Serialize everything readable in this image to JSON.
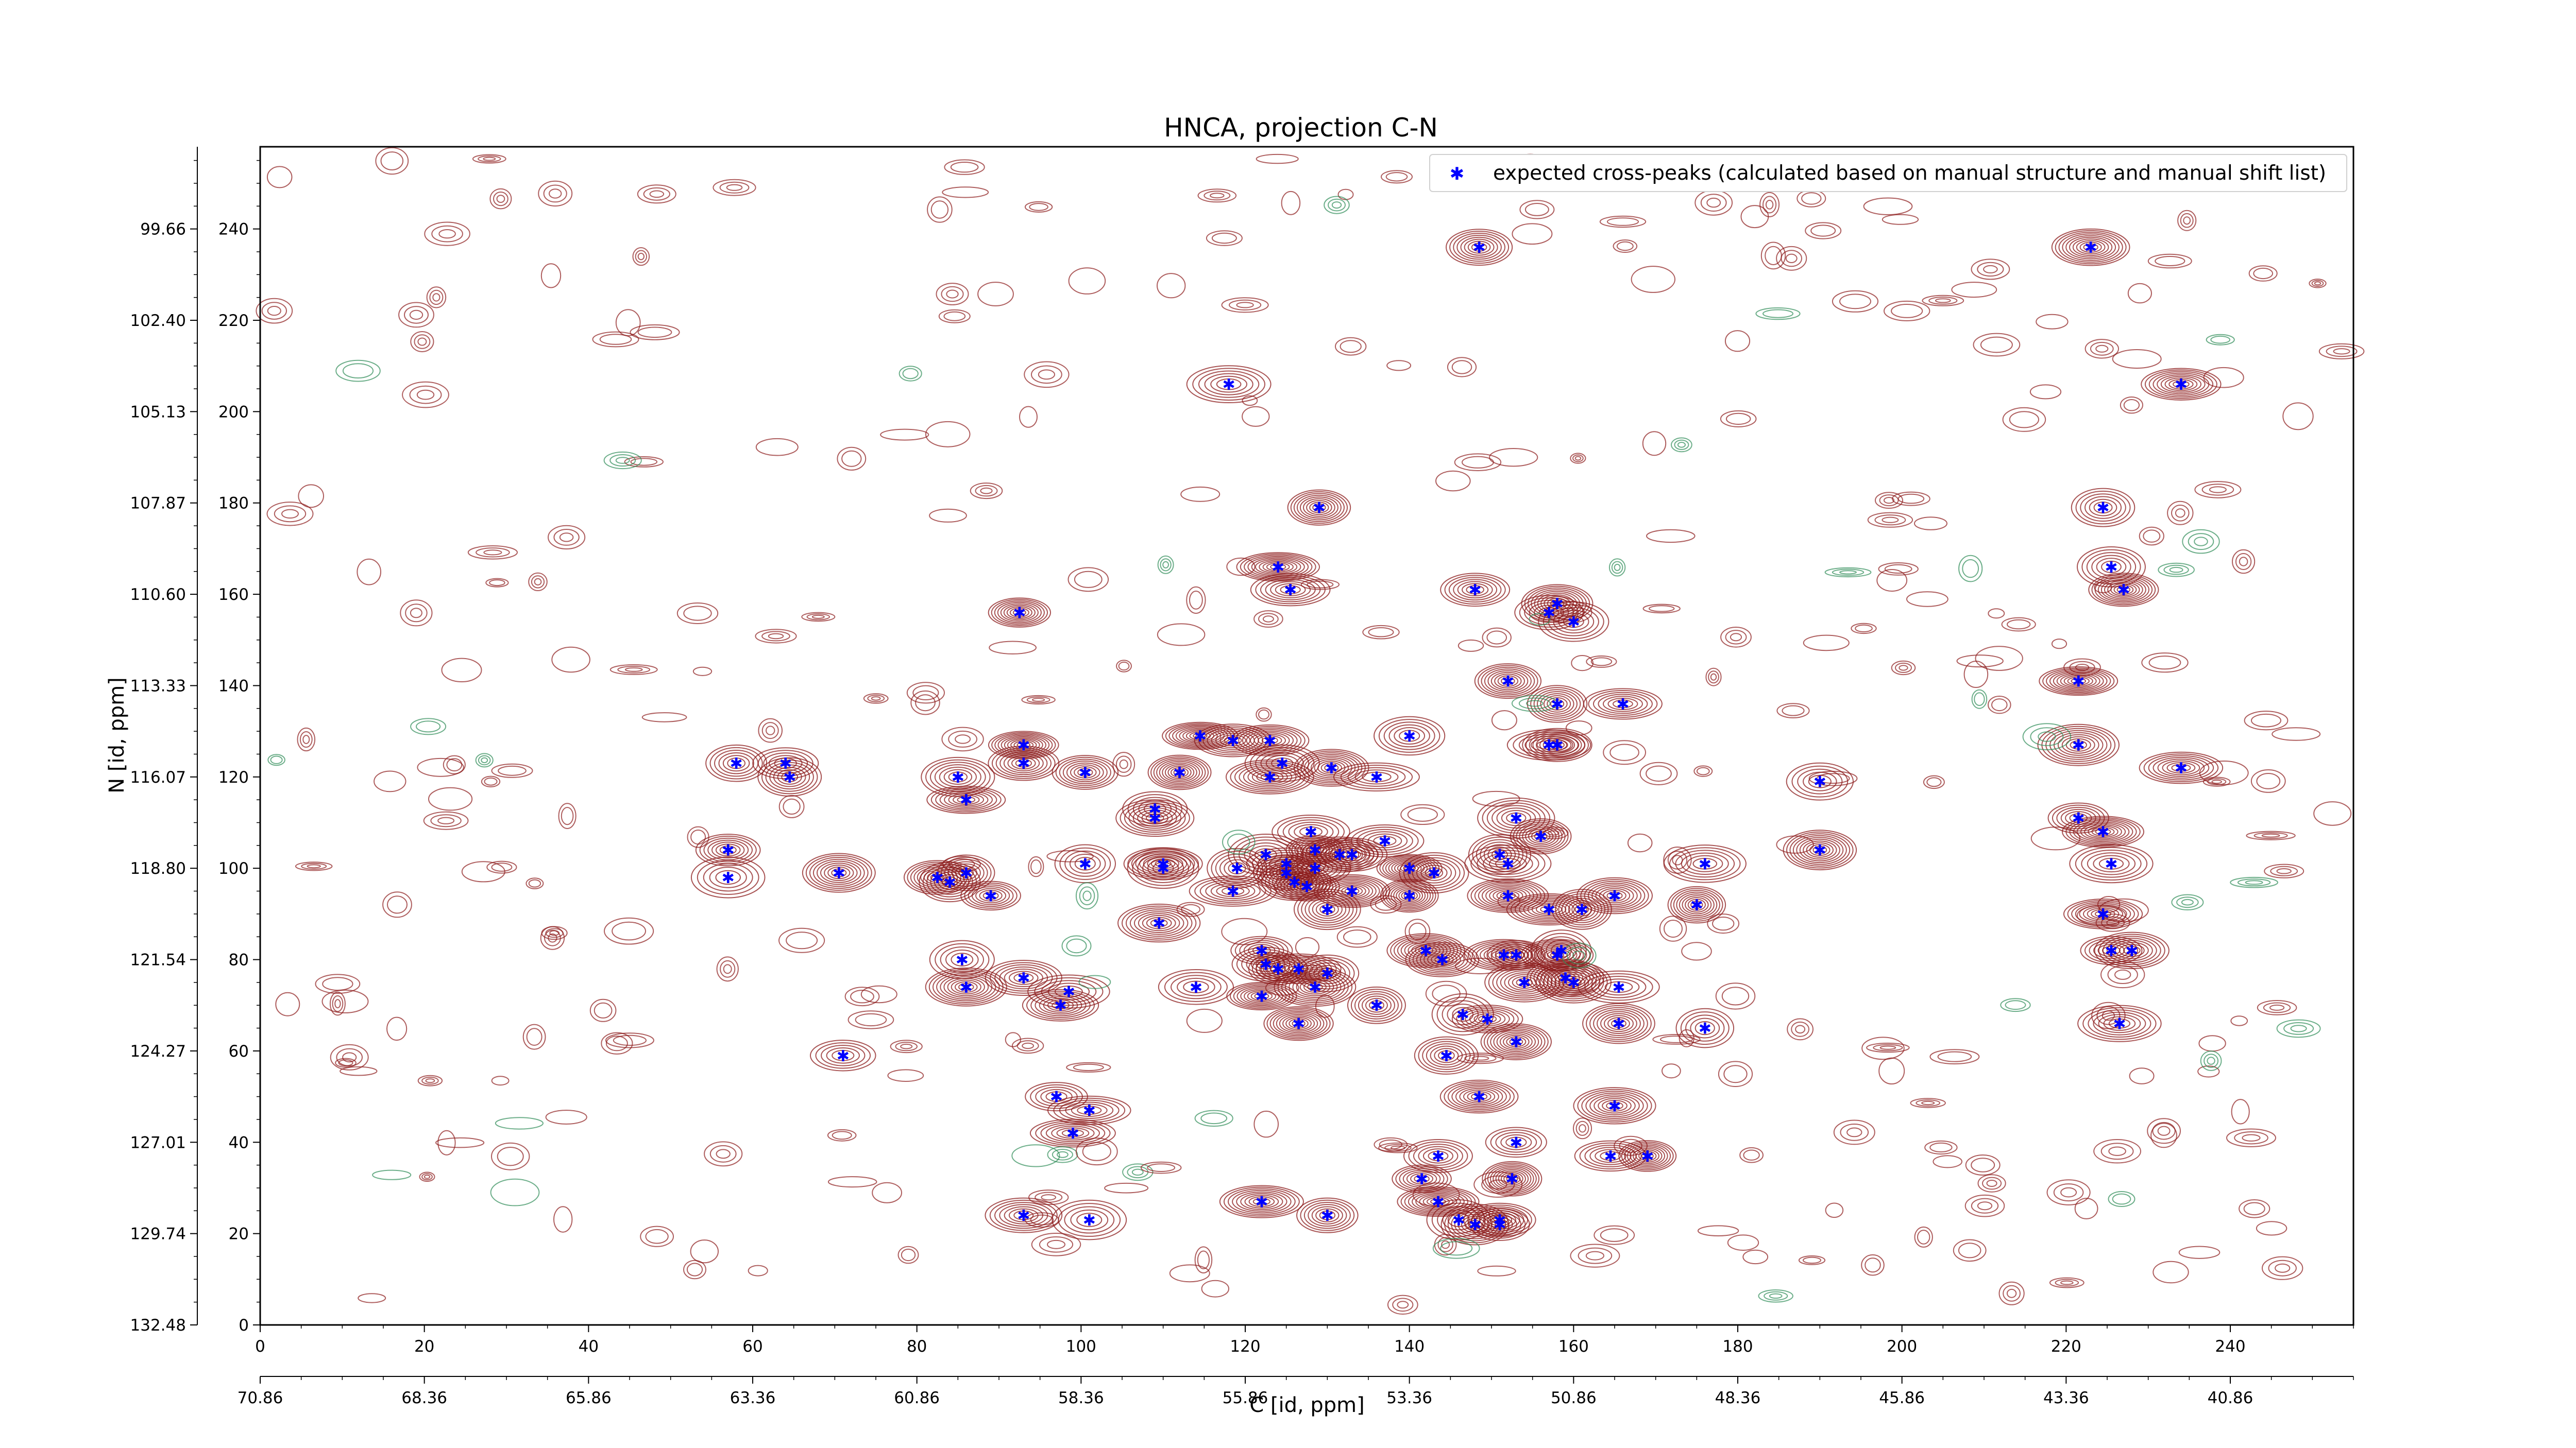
{
  "chart_data": {
    "type": "scatter",
    "title": "HNCA, projection C-N",
    "xlabel": "C [id, ppm]",
    "ylabel": "N [id, ppm]",
    "xlim": [
      0,
      255
    ],
    "ylim": [
      0,
      258
    ],
    "x_ticks": [
      0,
      20,
      40,
      60,
      80,
      100,
      120,
      140,
      160,
      180,
      200,
      220,
      240
    ],
    "y_ticks": [
      0,
      20,
      40,
      60,
      80,
      100,
      120,
      140,
      160,
      180,
      200,
      220,
      240
    ],
    "secondary_x_axis": {
      "position": "bottom",
      "tick_labels": [
        "70.86",
        "68.36",
        "65.86",
        "63.36",
        "60.86",
        "58.36",
        "55.86",
        "53.36",
        "50.86",
        "48.36",
        "45.86",
        "43.36",
        "40.86"
      ]
    },
    "secondary_y_axis": {
      "position": "left",
      "tick_labels": [
        "132.48",
        "129.74",
        "127.01",
        "124.27",
        "121.54",
        "118.80",
        "116.07",
        "113.33",
        "110.60",
        "107.87",
        "105.13",
        "102.40",
        "99.66"
      ]
    },
    "grid": false,
    "legend": {
      "placement": "top-right",
      "entries": [
        "expected cross-peaks (calculated based on manual structure and manual shift list)"
      ]
    },
    "colors": {
      "peaks": "#0000ff",
      "positive_contours": "#8b1a1a",
      "negative_contours": "#2e8b57"
    },
    "series": [
      {
        "name": "expected cross-peaks (calculated based on manual structure and manual shift list)",
        "points": [
          [
            148.5,
            236
          ],
          [
            223,
            236
          ],
          [
            118,
            206
          ],
          [
            234,
            206
          ],
          [
            129,
            179
          ],
          [
            224.5,
            179
          ],
          [
            124,
            166
          ],
          [
            125.5,
            161
          ],
          [
            225.5,
            166
          ],
          [
            227,
            161
          ],
          [
            92.5,
            156
          ],
          [
            157,
            156
          ],
          [
            158,
            158
          ],
          [
            160,
            154
          ],
          [
            152,
            141
          ],
          [
            221.5,
            141
          ],
          [
            158,
            136
          ],
          [
            166,
            136
          ],
          [
            148,
            161
          ],
          [
            93,
            127
          ],
          [
            58,
            123
          ],
          [
            64,
            123
          ],
          [
            64.5,
            120
          ],
          [
            85,
            120
          ],
          [
            86,
            115
          ],
          [
            93,
            123
          ],
          [
            100.5,
            121
          ],
          [
            112,
            121
          ],
          [
            114.5,
            129
          ],
          [
            118.5,
            128
          ],
          [
            123,
            128
          ],
          [
            123,
            120
          ],
          [
            124.5,
            123
          ],
          [
            130.5,
            122
          ],
          [
            136,
            120
          ],
          [
            140,
            129
          ],
          [
            157,
            127
          ],
          [
            158,
            127
          ],
          [
            190,
            119
          ],
          [
            221.5,
            127
          ],
          [
            234,
            122
          ],
          [
            109,
            113
          ],
          [
            109,
            111
          ],
          [
            153,
            111
          ],
          [
            156,
            107
          ],
          [
            128,
            108
          ],
          [
            137,
            106
          ],
          [
            57,
            104
          ],
          [
            57,
            98
          ],
          [
            70.5,
            99
          ],
          [
            82.5,
            98
          ],
          [
            84,
            97
          ],
          [
            86,
            99
          ],
          [
            89,
            94
          ],
          [
            100.5,
            101
          ],
          [
            110,
            101
          ],
          [
            110,
            100
          ],
          [
            119,
            100
          ],
          [
            118.5,
            95
          ],
          [
            122.5,
            103
          ],
          [
            125,
            101
          ],
          [
            125,
            99
          ],
          [
            126,
            97
          ],
          [
            127.5,
            96
          ],
          [
            128.5,
            104
          ],
          [
            128.5,
            100
          ],
          [
            131.5,
            103
          ],
          [
            133,
            103
          ],
          [
            130,
            91
          ],
          [
            133,
            95
          ],
          [
            140,
            100
          ],
          [
            143,
            99
          ],
          [
            140,
            94
          ],
          [
            151,
            103
          ],
          [
            152,
            101
          ],
          [
            152,
            94
          ],
          [
            157,
            91
          ],
          [
            165,
            94
          ],
          [
            161,
            91
          ],
          [
            175,
            92
          ],
          [
            176,
            101
          ],
          [
            190,
            104
          ],
          [
            221.5,
            111
          ],
          [
            224.5,
            108
          ],
          [
            225.5,
            101
          ],
          [
            224.5,
            90
          ],
          [
            109.5,
            88
          ],
          [
            122,
            82
          ],
          [
            122.5,
            79
          ],
          [
            124,
            78
          ],
          [
            126.5,
            78
          ],
          [
            85.5,
            80
          ],
          [
            93,
            76
          ],
          [
            98.5,
            73
          ],
          [
            97.5,
            70
          ],
          [
            114,
            74
          ],
          [
            122,
            72
          ],
          [
            128.5,
            74
          ],
          [
            130,
            77
          ],
          [
            126.5,
            66
          ],
          [
            142,
            82
          ],
          [
            144,
            80
          ],
          [
            151.5,
            81
          ],
          [
            153,
            81
          ],
          [
            158,
            81
          ],
          [
            158.5,
            82
          ],
          [
            160,
            75
          ],
          [
            154,
            75
          ],
          [
            159,
            76
          ],
          [
            165.5,
            74
          ],
          [
            165.5,
            66
          ],
          [
            136,
            70
          ],
          [
            146.5,
            68
          ],
          [
            149.5,
            67
          ],
          [
            153,
            62
          ],
          [
            86,
            74
          ],
          [
            144.5,
            59
          ],
          [
            176,
            65
          ],
          [
            226.5,
            66
          ],
          [
            225.5,
            82
          ],
          [
            228,
            82
          ],
          [
            71,
            59
          ],
          [
            97,
            50
          ],
          [
            101,
            47
          ],
          [
            99,
            42
          ],
          [
            148.5,
            50
          ],
          [
            153,
            40
          ],
          [
            165,
            48
          ],
          [
            164.5,
            37
          ],
          [
            169,
            37
          ],
          [
            143.5,
            37
          ],
          [
            141.5,
            32
          ],
          [
            152.5,
            32
          ],
          [
            143.5,
            27
          ],
          [
            146,
            23
          ],
          [
            148,
            22
          ],
          [
            151,
            22
          ],
          [
            151,
            23
          ],
          [
            93,
            24
          ],
          [
            101,
            23
          ],
          [
            122,
            27
          ],
          [
            130,
            24
          ]
        ]
      }
    ]
  }
}
